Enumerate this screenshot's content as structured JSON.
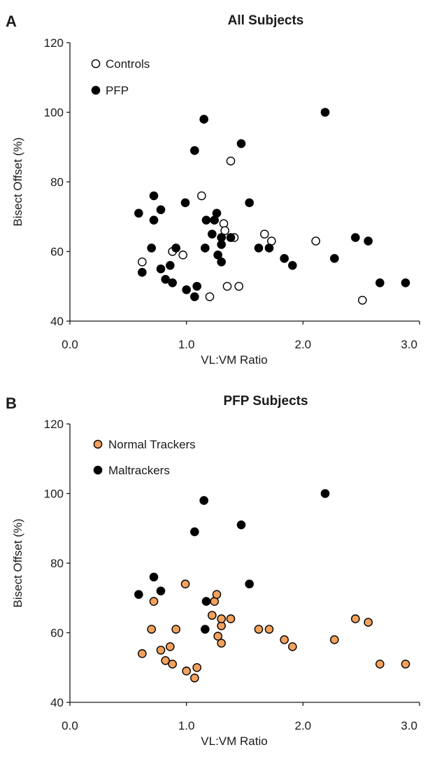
{
  "chart_data": [
    {
      "panel": "A",
      "type": "scatter",
      "title": "All Subjects",
      "xlabel": "VL:VM Ratio",
      "ylabel": "Bisect Offset (%)",
      "xlim": [
        0.0,
        3.0
      ],
      "ylim": [
        40,
        120
      ],
      "xticks": [
        "0.0",
        "1.0",
        "2.0",
        "3.0"
      ],
      "yticks": [
        "40",
        "60",
        "80",
        "100",
        "120"
      ],
      "legend_position": "top-left",
      "series": [
        {
          "name": "Controls",
          "marker": "open-circle",
          "fill": "#ffffff",
          "stroke": "#000000",
          "points": [
            [
              0.62,
              57
            ],
            [
              0.88,
              60
            ],
            [
              0.97,
              59
            ],
            [
              1.13,
              76
            ],
            [
              1.2,
              47
            ],
            [
              1.32,
              68
            ],
            [
              1.33,
              66
            ],
            [
              1.35,
              50
            ],
            [
              1.38,
              86
            ],
            [
              1.41,
              64
            ],
            [
              1.45,
              50
            ],
            [
              1.67,
              65
            ],
            [
              1.73,
              63
            ],
            [
              2.11,
              63
            ],
            [
              2.51,
              46
            ]
          ]
        },
        {
          "name": "PFP",
          "marker": "filled-circle",
          "fill": "#000000",
          "stroke": "#000000",
          "points": [
            [
              0.59,
              71
            ],
            [
              0.62,
              54
            ],
            [
              0.7,
              61
            ],
            [
              0.72,
              69
            ],
            [
              0.72,
              76
            ],
            [
              0.78,
              55
            ],
            [
              0.78,
              72
            ],
            [
              0.82,
              52
            ],
            [
              0.86,
              56
            ],
            [
              0.88,
              51
            ],
            [
              0.91,
              61
            ],
            [
              0.99,
              74
            ],
            [
              1.0,
              49
            ],
            [
              1.07,
              47
            ],
            [
              1.07,
              89
            ],
            [
              1.09,
              50
            ],
            [
              1.15,
              98
            ],
            [
              1.16,
              61
            ],
            [
              1.17,
              69
            ],
            [
              1.22,
              65
            ],
            [
              1.24,
              69
            ],
            [
              1.26,
              71
            ],
            [
              1.27,
              59
            ],
            [
              1.3,
              57
            ],
            [
              1.3,
              62
            ],
            [
              1.3,
              64
            ],
            [
              1.38,
              64
            ],
            [
              1.47,
              91
            ],
            [
              1.54,
              74
            ],
            [
              1.62,
              61
            ],
            [
              1.71,
              61
            ],
            [
              1.84,
              58
            ],
            [
              1.91,
              56
            ],
            [
              2.19,
              100
            ],
            [
              2.27,
              58
            ],
            [
              2.45,
              64
            ],
            [
              2.56,
              63
            ],
            [
              2.66,
              51
            ],
            [
              2.88,
              51
            ]
          ]
        }
      ]
    },
    {
      "panel": "B",
      "type": "scatter",
      "title": "PFP Subjects",
      "xlabel": "VL:VM Ratio",
      "ylabel": "Bisect Offset (%)",
      "xlim": [
        0.0,
        3.0
      ],
      "ylim": [
        40,
        120
      ],
      "xticks": [
        "0.0",
        "1.0",
        "2.0",
        "3.0"
      ],
      "yticks": [
        "40",
        "60",
        "80",
        "100",
        "120"
      ],
      "legend_position": "top-left",
      "series": [
        {
          "name": "Normal Trackers",
          "marker": "filled-circle",
          "fill": "#f4a15c",
          "stroke": "#000000",
          "points": [
            [
              0.62,
              54
            ],
            [
              0.7,
              61
            ],
            [
              0.72,
              69
            ],
            [
              0.78,
              55
            ],
            [
              0.82,
              52
            ],
            [
              0.86,
              56
            ],
            [
              0.88,
              51
            ],
            [
              0.91,
              61
            ],
            [
              0.99,
              74
            ],
            [
              1.0,
              49
            ],
            [
              1.07,
              47
            ],
            [
              1.09,
              50
            ],
            [
              1.22,
              65
            ],
            [
              1.24,
              69
            ],
            [
              1.26,
              71
            ],
            [
              1.27,
              59
            ],
            [
              1.3,
              57
            ],
            [
              1.3,
              62
            ],
            [
              1.3,
              64
            ],
            [
              1.38,
              64
            ],
            [
              1.62,
              61
            ],
            [
              1.71,
              61
            ],
            [
              1.84,
              58
            ],
            [
              1.91,
              56
            ],
            [
              2.27,
              58
            ],
            [
              2.45,
              64
            ],
            [
              2.56,
              63
            ],
            [
              2.66,
              51
            ],
            [
              2.88,
              51
            ]
          ]
        },
        {
          "name": "Maltrackers",
          "marker": "filled-circle",
          "fill": "#000000",
          "stroke": "#000000",
          "points": [
            [
              0.59,
              71
            ],
            [
              0.72,
              76
            ],
            [
              0.78,
              72
            ],
            [
              1.07,
              89
            ],
            [
              1.15,
              98
            ],
            [
              1.16,
              61
            ],
            [
              1.17,
              69
            ],
            [
              1.47,
              91
            ],
            [
              1.54,
              74
            ],
            [
              2.19,
              100
            ]
          ]
        }
      ]
    }
  ]
}
